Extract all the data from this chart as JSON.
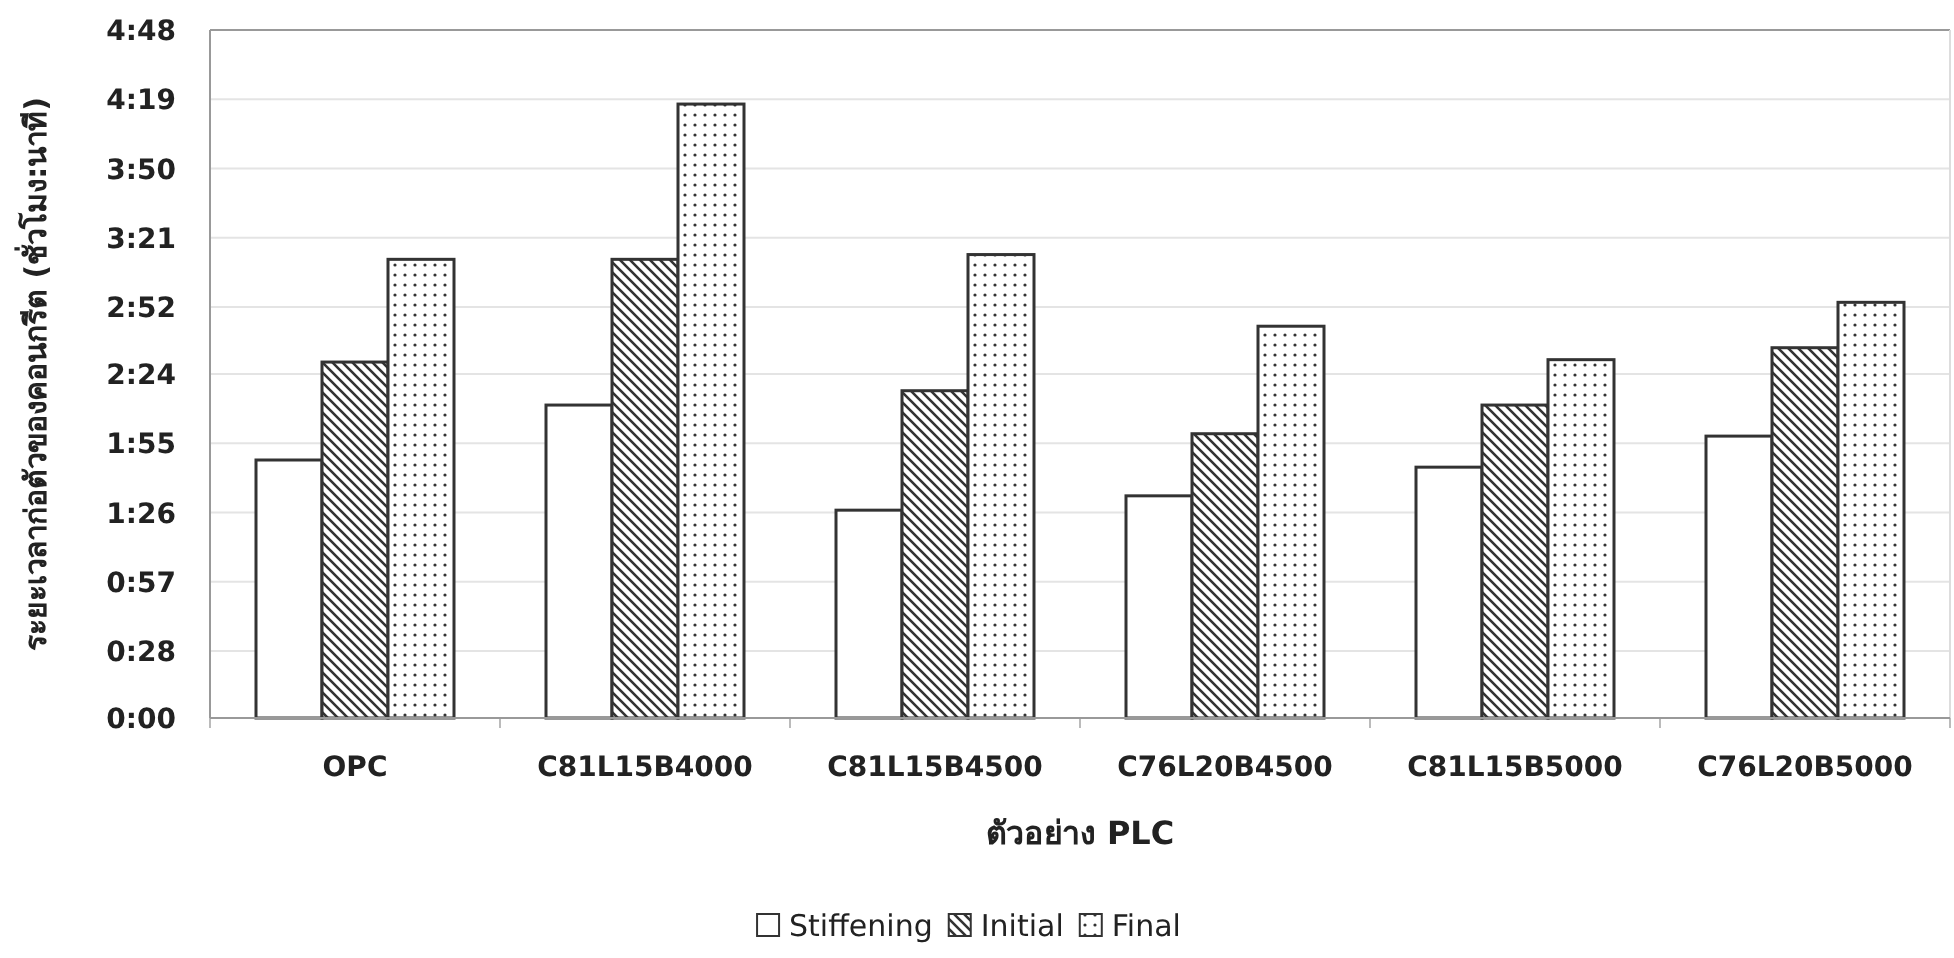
{
  "chart_data": {
    "type": "bar",
    "xlabel": "ตัวอย่าง PLC",
    "ylabel": "ระยะเวลาก่อตัวของคอนกรีต (ชั่วโมง:นาที)",
    "categories": [
      "OPC",
      "C81L15B4000",
      "C81L15B4500",
      "C76L20B4500",
      "C81L15B5000",
      "C76L20B5000"
    ],
    "series": [
      {
        "name": "Stiffening",
        "color": "#ffffff",
        "values": [
          108,
          131,
          87,
          93,
          105,
          118
        ]
      },
      {
        "name": "Initial",
        "color": "#333333",
        "values": [
          149,
          192,
          137,
          119,
          131,
          155
        ]
      },
      {
        "name": "Final",
        "color": "#333333",
        "values": [
          192,
          257,
          194,
          164,
          150,
          174
        ]
      }
    ],
    "ylim": [
      0,
      288
    ],
    "yticks": [
      {
        "value": 0,
        "label": "0:00"
      },
      {
        "value": 28,
        "label": "0:28"
      },
      {
        "value": 57,
        "label": "0:57"
      },
      {
        "value": 86,
        "label": "1:26"
      },
      {
        "value": 115,
        "label": "1:55"
      },
      {
        "value": 144,
        "label": "2:24"
      },
      {
        "value": 172,
        "label": "2:52"
      },
      {
        "value": 201,
        "label": "3:21"
      },
      {
        "value": 230,
        "label": "3:50"
      },
      {
        "value": 259,
        "label": "4:19"
      },
      {
        "value": 288,
        "label": "4:48"
      }
    ],
    "grid": "y",
    "legend": "bottom"
  }
}
